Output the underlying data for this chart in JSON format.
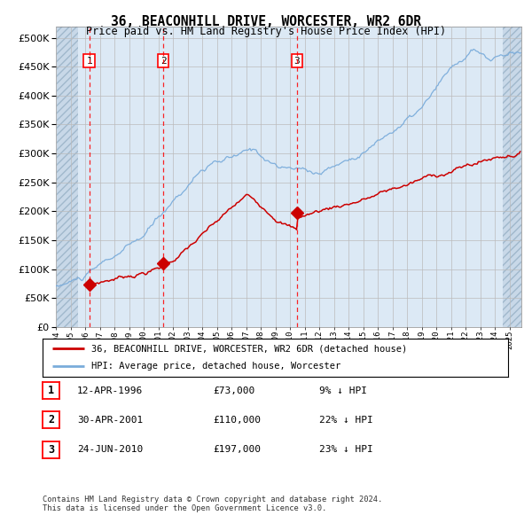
{
  "title": "36, BEACONHILL DRIVE, WORCESTER, WR2 6DR",
  "subtitle": "Price paid vs. HM Land Registry's House Price Index (HPI)",
  "ylim": [
    0,
    520000
  ],
  "yticks": [
    0,
    50000,
    100000,
    150000,
    200000,
    250000,
    300000,
    350000,
    400000,
    450000,
    500000
  ],
  "xlim_start": 1994.0,
  "xlim_end": 2025.8,
  "hatch_left_end": 1995.5,
  "hatch_right_start": 2024.5,
  "plot_bg_color": "#dce9f5",
  "hpi_color": "#7aacdb",
  "price_color": "#cc0000",
  "transactions": [
    {
      "year": 1996.28,
      "price": 73000,
      "label": "1"
    },
    {
      "year": 2001.33,
      "price": 110000,
      "label": "2"
    },
    {
      "year": 2010.48,
      "price": 197000,
      "label": "3"
    }
  ],
  "legend_entries": [
    "36, BEACONHILL DRIVE, WORCESTER, WR2 6DR (detached house)",
    "HPI: Average price, detached house, Worcester"
  ],
  "table_rows": [
    {
      "num": "1",
      "date": "12-APR-1996",
      "price": "£73,000",
      "hpi": "9% ↓ HPI"
    },
    {
      "num": "2",
      "date": "30-APR-2001",
      "price": "£110,000",
      "hpi": "22% ↓ HPI"
    },
    {
      "num": "3",
      "date": "24-JUN-2010",
      "price": "£197,000",
      "hpi": "23% ↓ HPI"
    }
  ],
  "footnote": "Contains HM Land Registry data © Crown copyright and database right 2024.\nThis data is licensed under the Open Government Licence v3.0."
}
